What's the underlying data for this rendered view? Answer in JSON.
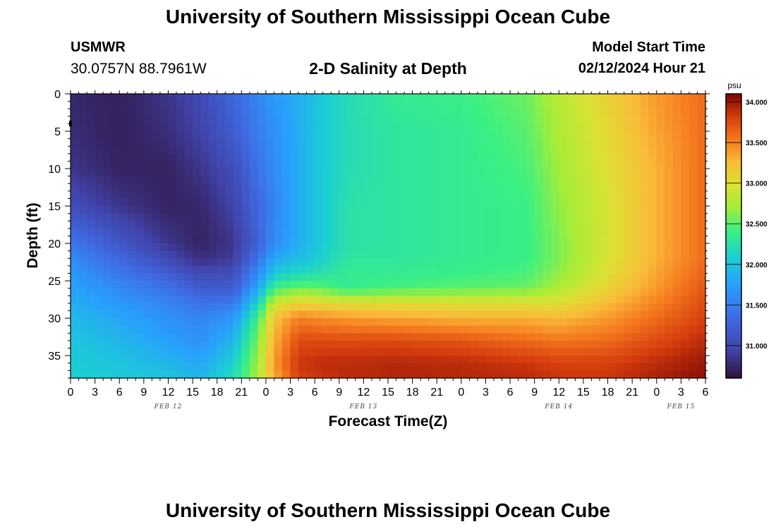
{
  "page": {
    "title": "University of Southern Mississippi Ocean Cube",
    "footer_title": "University of Southern Mississippi Ocean Cube",
    "station": "USMWR",
    "coordinates": "30.0757N  88.7961W",
    "subtitle": "2-D Salinity at Depth",
    "model_start_label": "Model Start Time",
    "model_start_value": "02/12/2024 Hour 21"
  },
  "chart_data": {
    "type": "heatmap",
    "title": "2-D Salinity at Depth",
    "xlabel": "Forecast Time(Z)",
    "ylabel": "Depth (ft)",
    "x_unit": "hours",
    "x_start": "02/12/2024 Hour 0",
    "x_range_hours": [
      0,
      78
    ],
    "x_tick_labels": [
      "0",
      "3",
      "6",
      "9",
      "12",
      "15",
      "18",
      "21",
      "0",
      "3",
      "6",
      "9",
      "12",
      "15",
      "18",
      "21",
      "0",
      "3",
      "6",
      "9",
      "12",
      "15",
      "18",
      "21",
      "0",
      "3",
      "6"
    ],
    "date_labels": [
      {
        "label": "FEB 12",
        "hour": 12
      },
      {
        "label": "FEB 13",
        "hour": 36
      },
      {
        "label": "FEB 14",
        "hour": 60
      },
      {
        "label": "FEB 15",
        "hour": 75
      }
    ],
    "y_range_ft": [
      0,
      38
    ],
    "y_ticks": [
      0,
      5,
      10,
      15,
      20,
      25,
      30,
      35
    ],
    "y_inverted": true,
    "colorbar": {
      "unit": "psu",
      "range": [
        30.6,
        34.1
      ],
      "tick_labels": [
        "31.000",
        "31.500",
        "32.000",
        "32.500",
        "33.000",
        "33.500",
        "34.000"
      ],
      "tick_values": [
        31.0,
        31.5,
        32.0,
        32.5,
        33.0,
        33.5,
        34.0
      ]
    },
    "profile_depths_ft": [
      0,
      5,
      10,
      15,
      20,
      22,
      24,
      26,
      28,
      30,
      33,
      36,
      38
    ],
    "profiles": [
      {
        "hour": 0,
        "salinity": [
          30.75,
          30.78,
          30.85,
          31.05,
          31.45,
          31.6,
          31.7,
          31.78,
          31.85,
          31.92,
          32.0,
          32.05,
          32.1
        ]
      },
      {
        "hour": 6,
        "salinity": [
          30.7,
          30.7,
          30.72,
          30.85,
          31.15,
          31.3,
          31.45,
          31.6,
          31.7,
          31.8,
          31.9,
          32.0,
          32.05
        ]
      },
      {
        "hour": 12,
        "salinity": [
          30.85,
          30.8,
          30.72,
          30.72,
          30.85,
          31.0,
          31.2,
          31.4,
          31.55,
          31.65,
          31.75,
          31.9,
          32.0
        ]
      },
      {
        "hour": 16,
        "salinity": [
          31.0,
          30.95,
          30.85,
          30.75,
          30.72,
          30.8,
          31.0,
          31.2,
          31.4,
          31.55,
          31.65,
          31.8,
          31.9
        ]
      },
      {
        "hour": 20,
        "salinity": [
          31.3,
          31.2,
          31.05,
          30.95,
          30.85,
          30.9,
          31.05,
          31.2,
          31.45,
          31.7,
          31.9,
          32.1,
          32.2
        ]
      },
      {
        "hour": 23,
        "salinity": [
          31.55,
          31.5,
          31.4,
          31.3,
          31.25,
          31.4,
          31.6,
          31.8,
          32.1,
          32.4,
          32.6,
          32.7,
          32.75
        ]
      },
      {
        "hour": 25,
        "salinity": [
          31.7,
          31.65,
          31.6,
          31.55,
          31.6,
          31.8,
          32.05,
          32.4,
          32.9,
          33.2,
          33.3,
          33.4,
          33.3
        ]
      },
      {
        "hour": 28,
        "salinity": [
          31.85,
          31.85,
          31.85,
          31.85,
          31.85,
          31.95,
          32.15,
          32.55,
          33.1,
          33.5,
          33.75,
          33.85,
          33.8
        ]
      },
      {
        "hour": 31,
        "salinity": [
          32.05,
          32.05,
          32.05,
          32.05,
          32.05,
          32.1,
          32.25,
          32.5,
          33.05,
          33.45,
          33.75,
          33.9,
          33.85
        ]
      },
      {
        "hour": 34,
        "salinity": [
          32.2,
          32.2,
          32.2,
          32.25,
          32.25,
          32.3,
          32.35,
          32.35,
          33.0,
          33.4,
          33.75,
          33.9,
          33.9
        ]
      },
      {
        "hour": 40,
        "salinity": [
          32.35,
          32.3,
          32.3,
          32.3,
          32.3,
          32.3,
          32.35,
          32.45,
          33.0,
          33.35,
          33.75,
          33.92,
          33.92
        ]
      },
      {
        "hour": 48,
        "salinity": [
          32.4,
          32.35,
          32.35,
          32.35,
          32.35,
          32.35,
          32.4,
          32.5,
          33.0,
          33.3,
          33.7,
          33.9,
          33.92
        ]
      },
      {
        "hour": 56,
        "salinity": [
          32.55,
          32.5,
          32.45,
          32.4,
          32.4,
          32.4,
          32.45,
          32.55,
          33.0,
          33.3,
          33.6,
          33.85,
          33.9
        ]
      },
      {
        "hour": 60,
        "salinity": [
          32.8,
          32.75,
          32.7,
          32.65,
          32.6,
          32.6,
          32.65,
          32.75,
          33.0,
          33.25,
          33.55,
          33.8,
          33.85
        ]
      },
      {
        "hour": 66,
        "salinity": [
          33.1,
          33.05,
          33.0,
          32.95,
          32.95,
          32.95,
          33.0,
          33.1,
          33.25,
          33.4,
          33.6,
          33.8,
          33.85
        ]
      },
      {
        "hour": 72,
        "salinity": [
          33.4,
          33.35,
          33.3,
          33.3,
          33.3,
          33.3,
          33.35,
          33.4,
          33.5,
          33.6,
          33.75,
          33.9,
          33.95
        ]
      },
      {
        "hour": 78,
        "salinity": [
          33.6,
          33.6,
          33.6,
          33.6,
          33.6,
          33.6,
          33.65,
          33.7,
          33.75,
          33.8,
          33.9,
          34.0,
          34.05
        ]
      }
    ]
  }
}
